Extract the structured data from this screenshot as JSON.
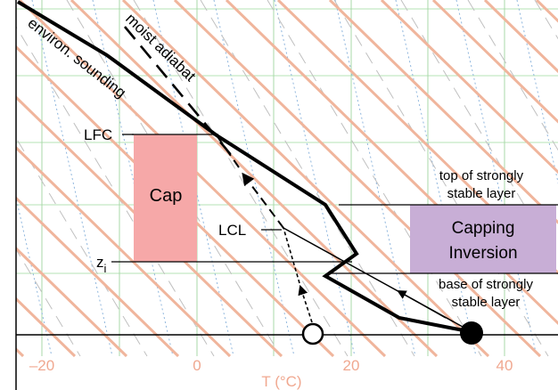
{
  "labels": {
    "environ_sounding": "environ. sounding",
    "moist_adiabat": "moist adiabat",
    "lfc": "LFC",
    "lcl": "LCL",
    "zi_main": "z",
    "zi_sub": "i",
    "cap": "Cap",
    "capping_inversion_line1": "Capping",
    "capping_inversion_line2": "Inversion",
    "top_layer_line1": "top of strongly",
    "top_layer_line2": "stable layer",
    "base_layer_line1": "base of strongly",
    "base_layer_line2": "stable layer"
  },
  "x_axis": {
    "label": "T (°C)",
    "ticks": [
      "–20",
      "0",
      "20",
      "40"
    ]
  },
  "colors": {
    "cap_box": "#f6a8a8",
    "capping_box": "#c8aed6",
    "dry_adiabat": "#f0b59c",
    "moist_adiabat_bg": "#c0c0c0",
    "mixing_ratio": "#8fb6dd",
    "isotherm": "#a8d8a8",
    "isobar": "#b5e3b5",
    "tick_label": "#f0a890"
  }
}
